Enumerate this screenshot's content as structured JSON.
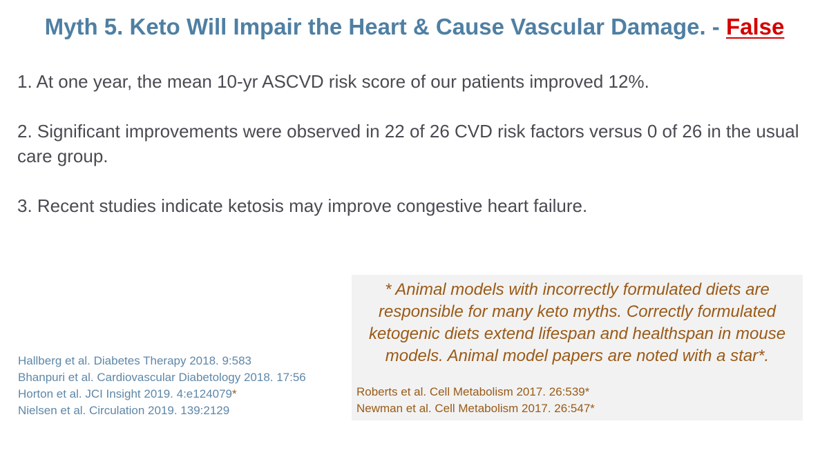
{
  "slide": {
    "title_main": "Myth 5. Keto Will Impair the Heart & Cause Vascular Damage. - ",
    "title_verdict": "False",
    "points": [
      "1. At one year, the mean 10-yr ASCVD risk score of our patients improved 12%.",
      "2. Significant improvements were observed in 22 of 26 CVD risk factors versus 0 of 26 in the usual care group.",
      "3. Recent studies indicate ketosis may improve congestive heart failure."
    ],
    "references_left": [
      "Hallberg et al. Diabetes Therapy 2018. 9:583",
      "Bhanpuri et al. Cardiovascular Diabetology 2018. 17:56",
      "Horton et al. JCI Insight 2019. 4:e124079",
      "Nielsen et al. Circulation 2019. 139:2129"
    ],
    "reference_star": "*",
    "note": {
      "lines": [
        "* Animal models with incorrectly formulated diets are",
        "responsible for many keto myths. Correctly formulated",
        "ketogenic diets extend lifespan and healthspan in mouse",
        "models. Animal model papers are noted with a star*."
      ],
      "references": [
        "Roberts et al. Cell Metabolism 2017. 26:539*",
        "Newman et al. Cell Metabolism 2017. 26:547*"
      ]
    }
  }
}
